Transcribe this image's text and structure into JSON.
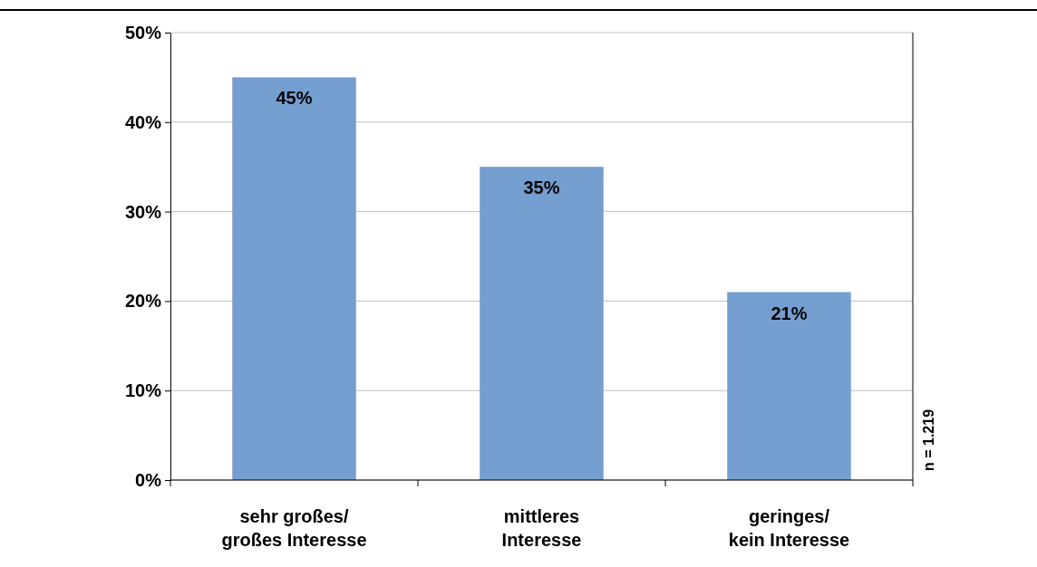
{
  "chart_data": {
    "type": "bar",
    "categories": [
      "sehr großes/\ngroßes Interesse",
      "mittleres\nInteresse",
      "geringes/\nkein Interesse"
    ],
    "values": [
      45,
      35,
      21
    ],
    "color": "#749ed0",
    "value_labels": [
      "45%",
      "35%",
      "21%"
    ],
    "ylim": [
      0,
      50
    ],
    "yticks": [
      {
        "value": 0,
        "label": "0%"
      },
      {
        "value": 10,
        "label": "10%"
      },
      {
        "value": 20,
        "label": "20%"
      },
      {
        "value": 30,
        "label": "30%"
      },
      {
        "value": 40,
        "label": "40%"
      },
      {
        "value": 50,
        "label": "50%"
      }
    ],
    "grid": "y",
    "annotations": [
      "n = 1.219"
    ]
  }
}
